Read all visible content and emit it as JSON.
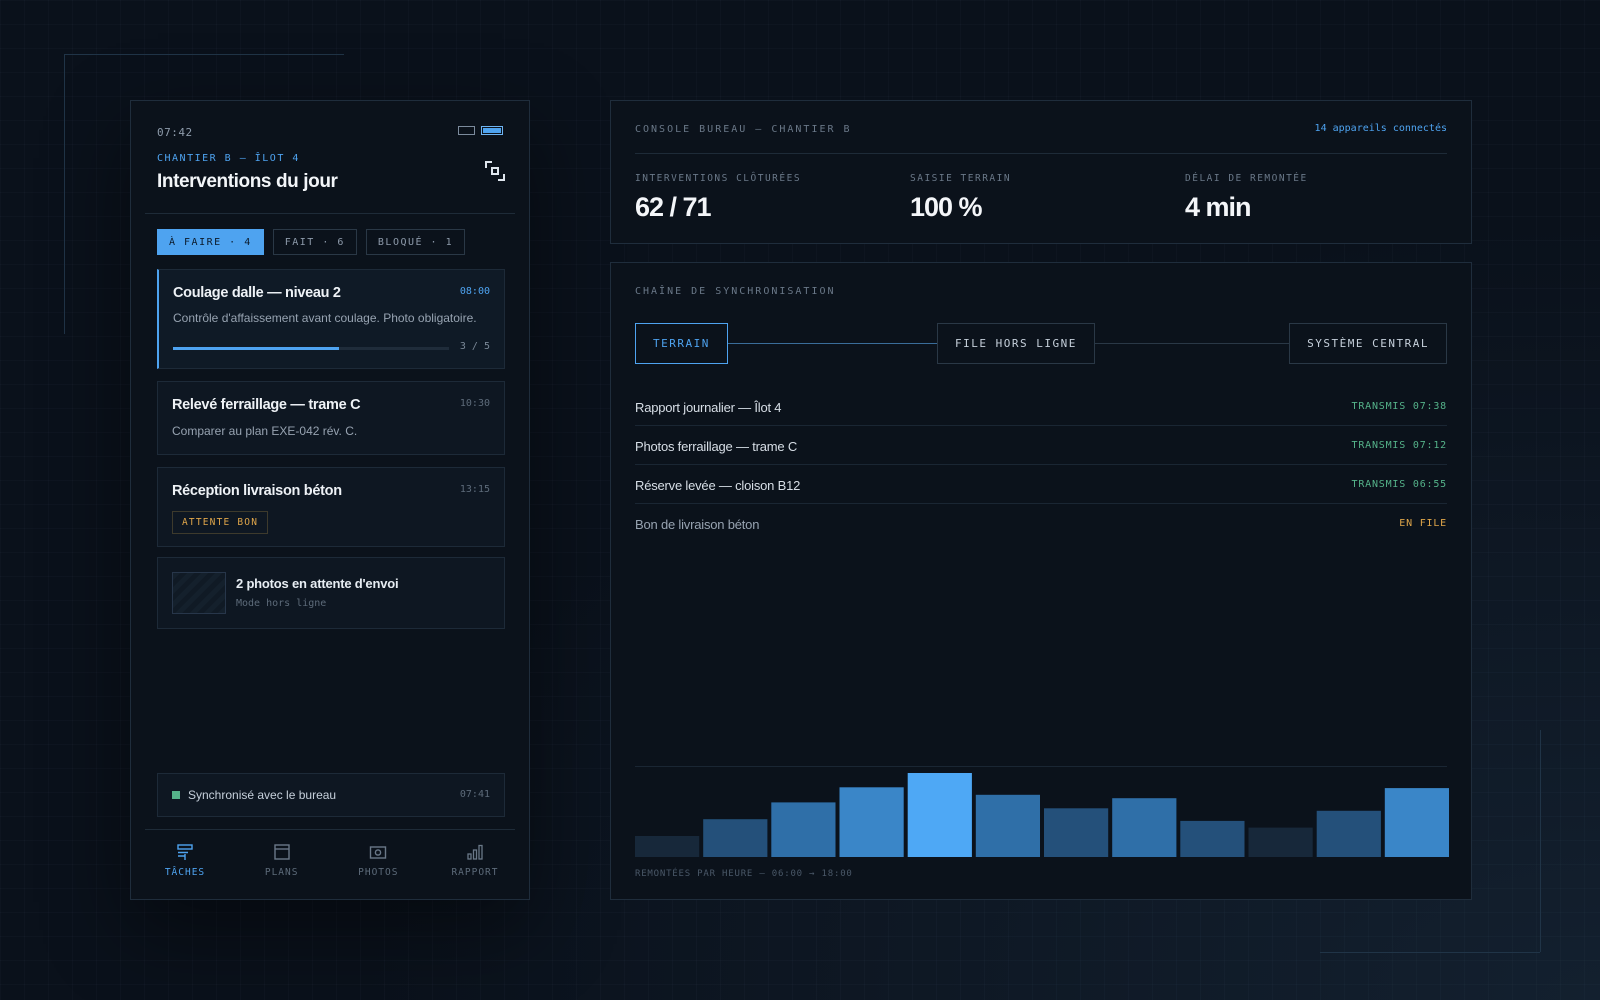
{
  "mobile": {
    "clock": "07:42",
    "site_label": "CHANTIER B — ÎLOT 4",
    "title": "Interventions du jour",
    "filters": [
      {
        "label": "À FAIRE · 4",
        "active": true
      },
      {
        "label": "FAIT · 6",
        "active": false
      },
      {
        "label": "BLOQUÉ · 1",
        "active": false
      }
    ],
    "tasks": [
      {
        "title": "Coulage dalle — niveau 2",
        "time": "08:00",
        "description": "Contrôle d'affaissement avant coulage. Photo obligatoire.",
        "progress_done": 3,
        "progress_total": 5,
        "progress_text": "3 / 5"
      },
      {
        "title": "Relevé ferraillage — trame C",
        "time": "10:30",
        "description": "Comparer au plan EXE-042 rév. C."
      },
      {
        "title": "Réception livraison béton",
        "time": "13:15",
        "badge": "ATTENTE BON"
      }
    ],
    "photos": {
      "title": "2 photos en attente d'envoi",
      "subtitle": "Mode hors ligne"
    },
    "sync": {
      "text": "Synchronisé avec le bureau",
      "time": "07:41"
    },
    "nav": [
      {
        "label": "TÂCHES",
        "icon": "tasks-icon",
        "active": true
      },
      {
        "label": "PLANS",
        "icon": "plans-icon",
        "active": false
      },
      {
        "label": "PHOTOS",
        "icon": "camera-icon",
        "active": false
      },
      {
        "label": "RAPPORT",
        "icon": "bar-chart-icon",
        "active": false
      }
    ]
  },
  "console": {
    "title": "CONSOLE BUREAU — CHANTIER B",
    "devices": "14 appareils connectés",
    "kpis": [
      {
        "label": "INTERVENTIONS CLÔTURÉES",
        "value": "62 / 71"
      },
      {
        "label": "SAISIE TERRAIN",
        "value": "100 %"
      },
      {
        "label": "DÉLAI DE REMONTÉE",
        "value": "4 min"
      }
    ]
  },
  "sync_chain": {
    "title": "CHAÎNE DE SYNCHRONISATION",
    "nodes": [
      "TERRAIN",
      "FILE HORS LIGNE",
      "SYSTÈME CENTRAL"
    ],
    "events": [
      {
        "name": "Rapport journalier — Îlot 4",
        "status": "TRANSMIS 07:38",
        "state": "sent"
      },
      {
        "name": "Photos ferraillage — trame C",
        "status": "TRANSMIS 07:12",
        "state": "sent"
      },
      {
        "name": "Réserve levée — cloison B12",
        "status": "TRANSMIS 06:55",
        "state": "sent"
      },
      {
        "name": "Bon de livraison béton",
        "status": "EN FILE",
        "state": "queued"
      }
    ],
    "chart_caption": "REMONTÉES PAR HEURE — 06:00 → 18:00"
  },
  "chart_data": {
    "type": "bar",
    "title": "",
    "xlabel": "REMONTÉES PAR HEURE — 06:00 → 18:00",
    "ylabel": "",
    "categories": [
      "",
      "",
      "",
      "",
      "",
      "",
      "",
      "",
      "",
      "",
      "",
      ""
    ],
    "values": [
      2.5,
      4.5,
      6.5,
      8.3,
      10,
      7.4,
      5.8,
      7,
      4.3,
      3.5,
      5.5,
      8.2
    ],
    "ylim": [
      0,
      10
    ],
    "grid": false,
    "legend": "none"
  },
  "colors": {
    "accent": "#4ea3f0",
    "success": "#55b38a",
    "warning": "#e0a64a"
  }
}
